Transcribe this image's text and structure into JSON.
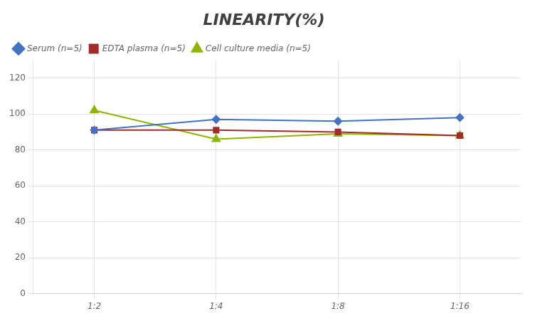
{
  "chart_data": {
    "type": "line",
    "title": "LINEARITY(%)",
    "categories": [
      "1:2",
      "1:4",
      "1:8",
      "1:16"
    ],
    "series": [
      {
        "name": "Serum (n=5)",
        "color": "#4472C4",
        "marker": "diamond",
        "values": [
          91,
          97,
          96,
          98
        ]
      },
      {
        "name": "EDTA plasma (n=5)",
        "color": "#A52A2A",
        "marker": "square",
        "values": [
          91,
          91,
          90,
          88
        ]
      },
      {
        "name": "Cell culture media (n=5)",
        "color": "#8DB600",
        "marker": "triangle",
        "values": [
          102,
          86,
          89,
          88
        ]
      }
    ],
    "ylim": [
      0,
      130
    ],
    "yticks": [
      0,
      20,
      40,
      60,
      80,
      100,
      120
    ],
    "grid": true,
    "legend": "top"
  }
}
